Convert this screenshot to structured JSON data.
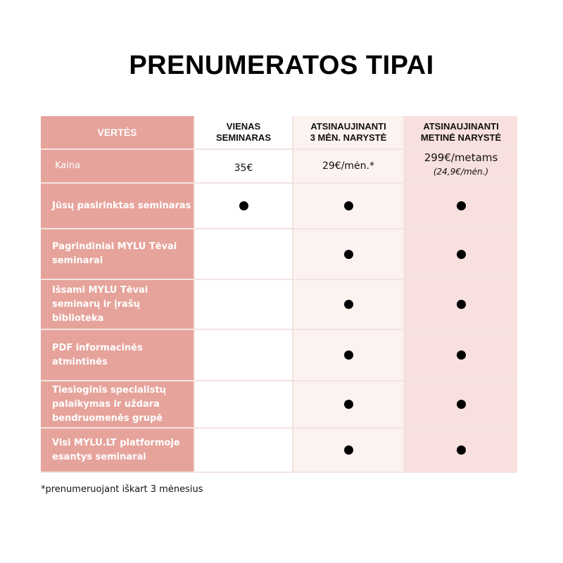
{
  "title": "PRENUMERATOS TIPAI",
  "header": {
    "col0": "VERTĖS",
    "col1": [
      "VIENAS",
      "SEMINARAS"
    ],
    "col2": [
      "ATSINAUJINANTI",
      "3 MĖN. NARYSTĖ"
    ],
    "col3": [
      "ATSINAUJINANTI",
      "METINĖ NARYSTĖ"
    ]
  },
  "price_row": {
    "label": "Kaina",
    "col1": "35€",
    "col2": "29€/mėn.*",
    "col3": "299€/metams",
    "col3_sub": "(24,9€/mėn.)"
  },
  "rows": [
    {
      "label": "Jūsų pasirinktas seminaras",
      "col1": true,
      "col2": true,
      "col3": true
    },
    {
      "label": "Pagrindiniai MYLU Tėvai seminarai",
      "col1": false,
      "col2": true,
      "col3": true
    },
    {
      "label": "Išsami MYLU Tėvai seminarų ir įrašų biblioteka",
      "col1": false,
      "col2": true,
      "col3": true
    },
    {
      "label": "PDF informacinės atmintinės",
      "col1": false,
      "col2": true,
      "col3": true
    },
    {
      "label": "Tiesioginis specialistų palaikymas ir uždara bendruomenės grupė",
      "col1": false,
      "col2": true,
      "col3": true
    },
    {
      "label": "Visi MYLU.LT platformoje esantys seminarai",
      "col1": false,
      "col2": true,
      "col3": true
    }
  ],
  "footnote": "*prenumeruojant iškart 3 mėnesius",
  "colors": {
    "label_col": "#e6a39b",
    "col2": "#fcf2f0",
    "col3": "#f7e0dd"
  }
}
